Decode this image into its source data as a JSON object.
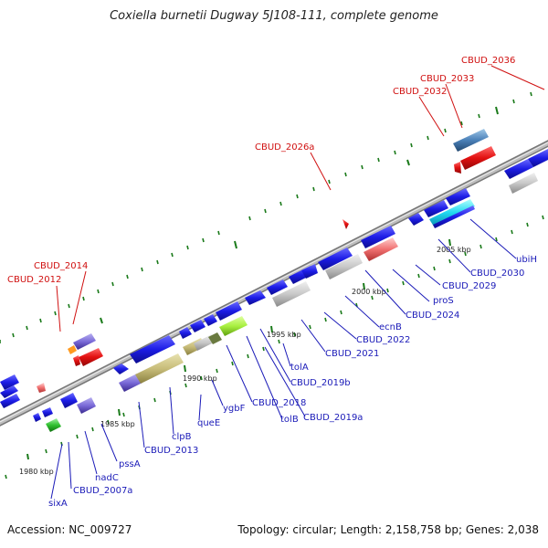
{
  "title": "Coxiella burnetii Dugway 5J108-111, complete genome",
  "footer": {
    "accession": "Accession: NC_009727",
    "topology": "Topology: circular; Length: 2,158,758 bp; Genes: 2,038"
  },
  "scale_labels": [
    "1980 kbp",
    "1985 kbp",
    "1990 kbp",
    "1995 kbp",
    "2000 kbp",
    "2005 kbp"
  ],
  "gene_labels_blue": [
    "sixA",
    "CBUD_2007a",
    "nadC",
    "pssA",
    "CBUD_2013",
    "clpB",
    "queE",
    "ygbF",
    "CBUD_2018",
    "tolB",
    "CBUD_2019a",
    "CBUD_2019b",
    "tolA",
    "CBUD_2021",
    "CBUD_2022",
    "ecnB",
    "CBUD_2024",
    "proS",
    "CBUD_2029",
    "CBUD_2030",
    "ubiH"
  ],
  "gene_labels_red": [
    "CBUD_2012",
    "CBUD_2014",
    "CBUD_2026a",
    "CBUD_2032",
    "CBUD_2033",
    "CBUD_2036"
  ],
  "colors": {
    "backbone": "#9a9a9a",
    "cds": "#1c1ce6",
    "trna": "#e21010",
    "tick": "#1a7a1a",
    "label_blue": "#1a1ab8",
    "label_red": "#d01010"
  }
}
